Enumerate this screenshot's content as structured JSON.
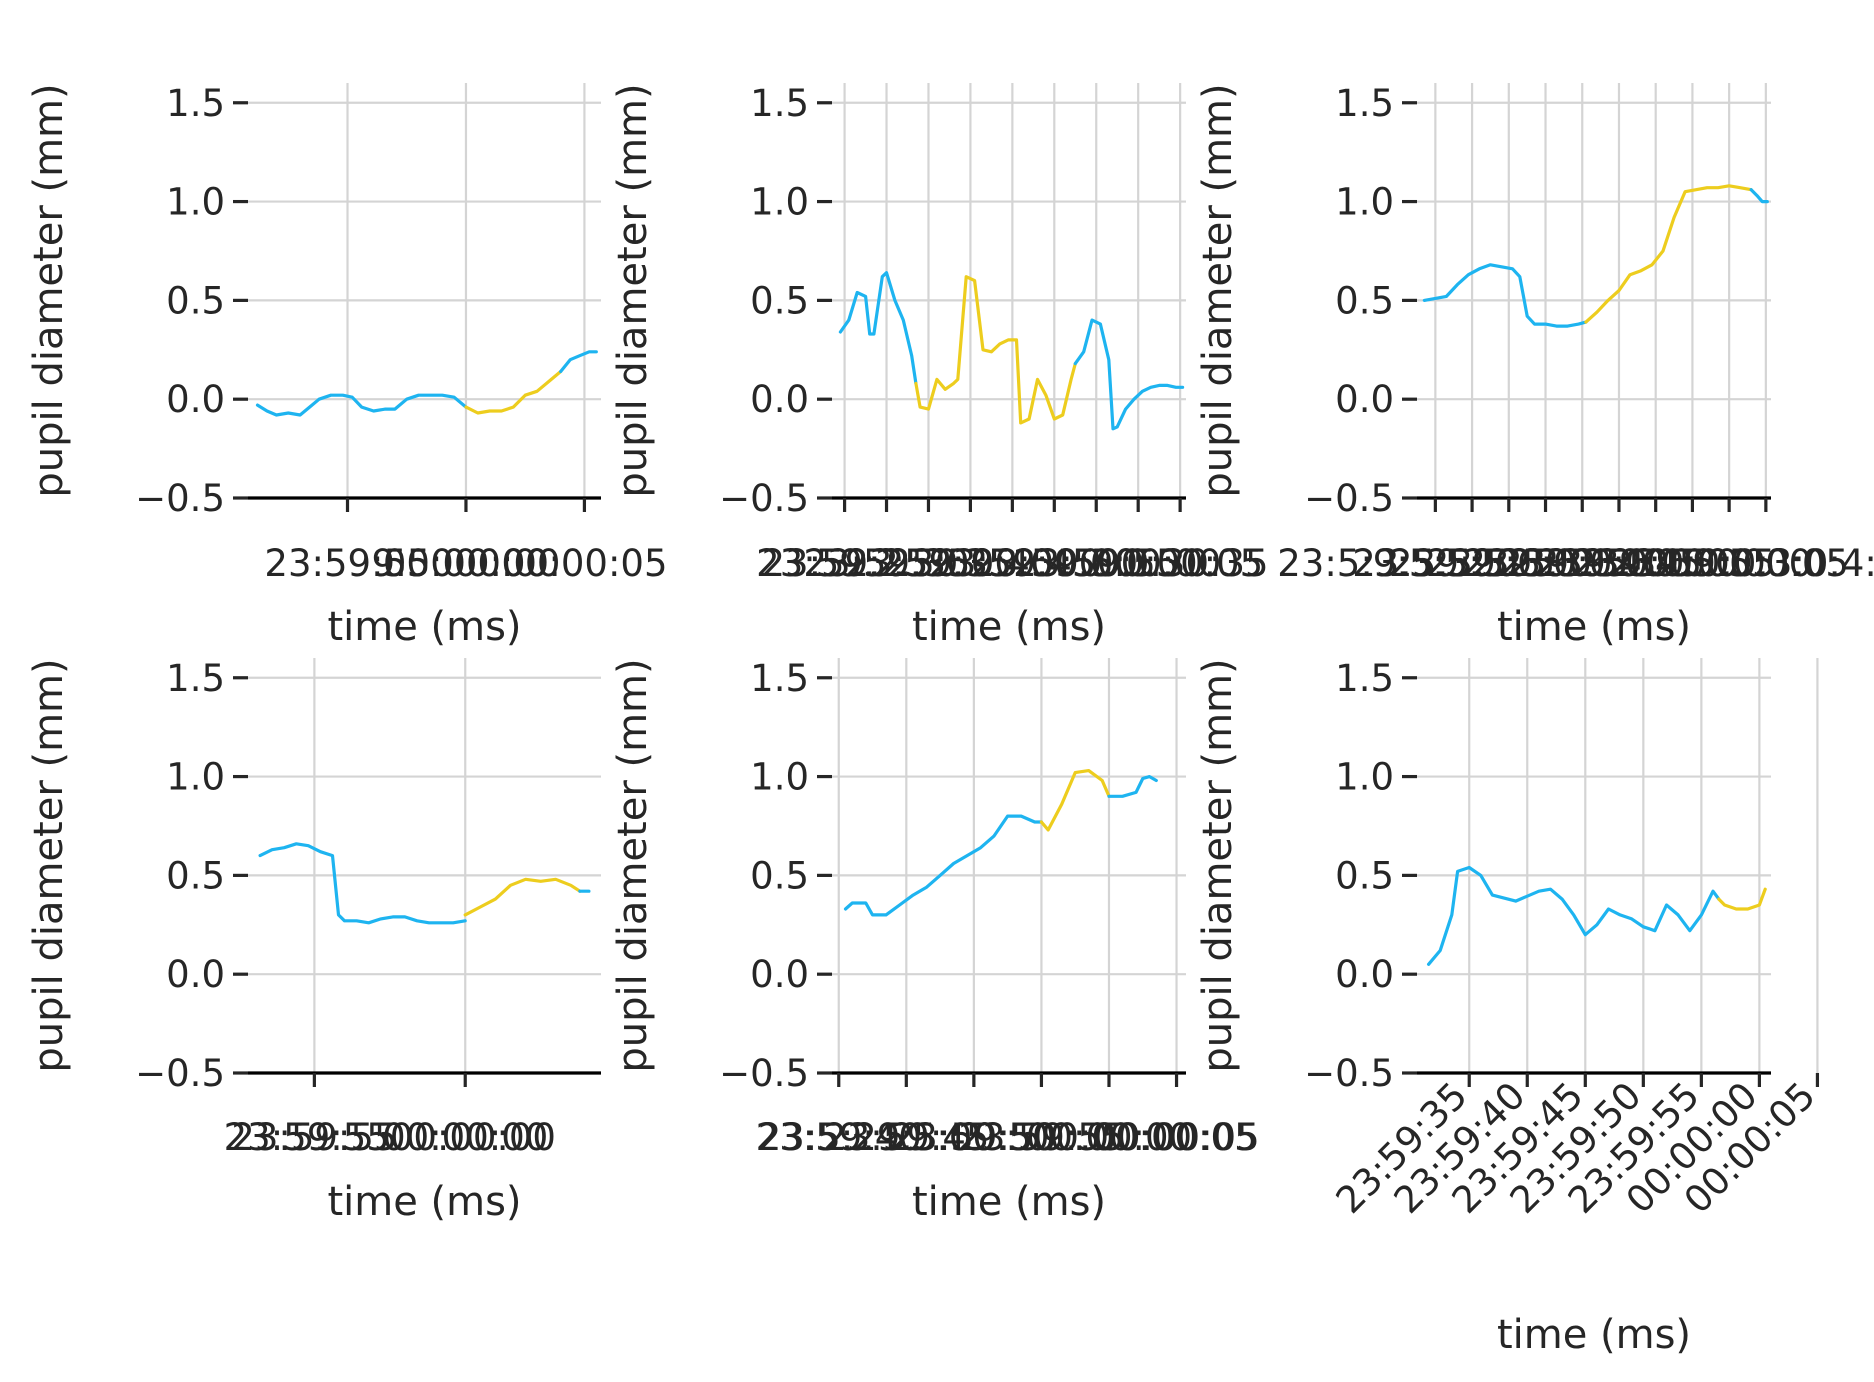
{
  "colors": {
    "series_a": "#1EB4F0",
    "series_b": "#EDCD1E",
    "grid": "#D4D4D4",
    "spine": "#000000",
    "text": "#262626"
  },
  "chart_data": [
    {
      "type": "line",
      "panel": 1,
      "xlabel": "time (ms)",
      "ylabel": "pupil diameter (mm)",
      "ylim": [
        -0.5,
        1.6
      ],
      "yticks": [
        -0.5,
        0.0,
        0.5,
        1.0,
        1.5
      ],
      "ytick_labels": [
        "−0.5",
        "0.0",
        "0.5",
        "1.0",
        "1.5"
      ],
      "xlim": [
        -9.2,
        5.7
      ],
      "xticks": [
        -5,
        0,
        5
      ],
      "xtick_labels": [
        "23:59:55",
        "00:00:00",
        "00:00:05"
      ],
      "xtick_overlay": "9.5000:00",
      "grid": true,
      "series": [
        {
          "color": "#1EB4F0",
          "x": [
            -8.8,
            -8.4,
            -8.0,
            -7.5,
            -7.0,
            -6.6,
            -6.2,
            -5.7,
            -5.2,
            -4.8,
            -4.4,
            -3.9,
            -3.4,
            -3.0,
            -2.5,
            -2.0,
            -1.5,
            -1.0,
            -0.5,
            0.0
          ],
          "y": [
            -0.03,
            -0.06,
            -0.08,
            -0.07,
            -0.08,
            -0.04,
            0.0,
            0.02,
            0.02,
            0.01,
            -0.04,
            -0.06,
            -0.05,
            -0.05,
            0.0,
            0.02,
            0.02,
            0.02,
            0.01,
            -0.04
          ]
        },
        {
          "color": "#EDCD1E",
          "x": [
            0.0,
            0.5,
            1.0,
            1.5,
            2.0,
            2.5,
            3.0,
            3.5,
            4.0
          ],
          "y": [
            -0.04,
            -0.07,
            -0.06,
            -0.06,
            -0.04,
            0.02,
            0.04,
            0.09,
            0.14
          ]
        },
        {
          "color": "#1EB4F0",
          "x": [
            4.0,
            4.4,
            4.8,
            5.2,
            5.5
          ],
          "y": [
            0.14,
            0.2,
            0.22,
            0.24,
            0.24
          ]
        }
      ]
    },
    {
      "type": "line",
      "panel": 2,
      "xlabel": "time (ms)",
      "ylabel": "pupil diameter (mm)",
      "ylim": [
        -0.5,
        1.6
      ],
      "yticks": [
        -0.5,
        0.0,
        0.5,
        1.0,
        1.5
      ],
      "ytick_labels": [
        "−0.5",
        "0.0",
        "0.5",
        "1.0",
        "1.5"
      ],
      "xlim": [
        -36.5,
        5.7
      ],
      "xticks": [
        -35,
        -30,
        -25,
        -20,
        -15,
        -10,
        -5,
        0,
        5
      ],
      "xtick_labels": [
        "23:59:25",
        "23:59:30",
        "23:59:35",
        "23:59:40",
        "23:59:45",
        "23:59:50",
        "23:59:55",
        "00:00:00",
        "00:00:05"
      ],
      "xtick_overlay": "23:59:2:50:00:00:0:0:30:35",
      "grid": true,
      "series": [
        {
          "color": "#1EB4F0",
          "x": [
            -35.5,
            -34.5,
            -33.5,
            -32.5,
            -32.0,
            -31.5,
            -30.5,
            -30.0,
            -29.0,
            -28.0,
            -27.0,
            -26.5
          ],
          "y": [
            0.34,
            0.4,
            0.54,
            0.52,
            0.33,
            0.33,
            0.62,
            0.64,
            0.5,
            0.4,
            0.22,
            0.08
          ]
        },
        {
          "color": "#EDCD1E",
          "x": [
            -26.5,
            -26.0,
            -25.0,
            -24.0,
            -23.0,
            -22.0,
            -21.5,
            -20.5,
            -19.5,
            -18.5,
            -17.5,
            -16.5,
            -15.5,
            -14.5,
            -14.0,
            -13.0,
            -12.0,
            -11.0,
            -10.0,
            -9.0,
            -8.0,
            -7.5
          ],
          "y": [
            0.08,
            -0.04,
            -0.05,
            0.1,
            0.05,
            0.08,
            0.1,
            0.62,
            0.6,
            0.25,
            0.24,
            0.28,
            0.3,
            0.3,
            -0.12,
            -0.1,
            0.1,
            0.02,
            -0.1,
            -0.08,
            0.1,
            0.18
          ]
        },
        {
          "color": "#1EB4F0",
          "x": [
            -7.5,
            -6.5,
            -5.5,
            -4.5,
            -3.5,
            -3.0,
            -2.5,
            -1.5,
            -0.5,
            0.5,
            1.5,
            2.5,
            3.5,
            4.5,
            5.3
          ],
          "y": [
            0.18,
            0.24,
            0.4,
            0.38,
            0.2,
            -0.15,
            -0.14,
            -0.05,
            0.0,
            0.04,
            0.06,
            0.07,
            0.07,
            0.06,
            0.06
          ]
        }
      ]
    },
    {
      "type": "line",
      "panel": 3,
      "xlabel": "time (ms)",
      "ylabel": "pupil diameter (mm)",
      "ylim": [
        -0.5,
        1.6
      ],
      "yticks": [
        -0.5,
        0.0,
        0.5,
        1.0,
        1.5
      ],
      "ytick_labels": [
        "−0.5",
        "0.0",
        "0.5",
        "1.0",
        "1.5"
      ],
      "xlim": [
        -42.5,
        5.7
      ],
      "xticks": [
        -40,
        -35,
        -30,
        -25,
        -20,
        -15,
        -10,
        -5,
        0,
        5
      ],
      "xtick_labels": [
        "23:59:20",
        "23:59:25",
        "23:59:30",
        "23:59:35",
        "23:59:40",
        "23:59:45",
        "23:59:50",
        "23:59:55",
        "00:00:00",
        "00:00:05"
      ],
      "xtick_overlay": "23:5:9:5:5:5:6:0:0:0:0:0:0:3:0:4:05",
      "grid": true,
      "series": [
        {
          "color": "#1EB4F0",
          "x": [
            -41.5,
            -40.0,
            -38.5,
            -37.0,
            -35.5,
            -34.0,
            -32.5,
            -31.0,
            -29.5,
            -28.5,
            -27.5,
            -26.5,
            -25.0,
            -23.5,
            -22.0,
            -20.5,
            -19.5
          ],
          "y": [
            0.5,
            0.51,
            0.52,
            0.58,
            0.63,
            0.66,
            0.68,
            0.67,
            0.66,
            0.62,
            0.42,
            0.38,
            0.38,
            0.37,
            0.37,
            0.38,
            0.39
          ]
        },
        {
          "color": "#EDCD1E",
          "x": [
            -19.5,
            -18.0,
            -16.5,
            -15.0,
            -13.5,
            -12.0,
            -10.5,
            -9.0,
            -7.5,
            -6.0,
            -4.5,
            -3.0,
            -1.5,
            0.0,
            1.5,
            3.0
          ],
          "y": [
            0.39,
            0.44,
            0.5,
            0.55,
            0.63,
            0.65,
            0.68,
            0.75,
            0.92,
            1.05,
            1.06,
            1.07,
            1.07,
            1.08,
            1.07,
            1.06
          ]
        },
        {
          "color": "#1EB4F0",
          "x": [
            3.0,
            3.8,
            4.5,
            5.2
          ],
          "y": [
            1.06,
            1.03,
            1.0,
            1.0
          ]
        }
      ]
    },
    {
      "type": "line",
      "panel": 4,
      "xlabel": "time (ms)",
      "ylabel": "pupil diameter (mm)",
      "ylim": [
        -0.5,
        1.6
      ],
      "yticks": [
        -0.5,
        0.0,
        0.5,
        1.0,
        1.5
      ],
      "ytick_labels": [
        "−0.5",
        "0.0",
        "0.5",
        "1.0",
        "1.5"
      ],
      "xlim": [
        -7.2,
        4.5
      ],
      "xticks": [
        -5,
        0
      ],
      "xtick_labels": [
        "23:59:55",
        "00:00:00"
      ],
      "xtick_overlay": "23:59:5500:00:00",
      "grid": true,
      "series": [
        {
          "color": "#1EB4F0",
          "x": [
            -6.8,
            -6.4,
            -6.0,
            -5.6,
            -5.2,
            -4.8,
            -4.4,
            -4.2,
            -4.0,
            -3.6,
            -3.2,
            -2.8,
            -2.4,
            -2.0,
            -1.6,
            -1.2,
            -0.8,
            -0.4,
            0.0
          ],
          "y": [
            0.6,
            0.63,
            0.64,
            0.66,
            0.65,
            0.62,
            0.6,
            0.3,
            0.27,
            0.27,
            0.26,
            0.28,
            0.29,
            0.29,
            0.27,
            0.26,
            0.26,
            0.26,
            0.27
          ]
        },
        {
          "color": "#EDCD1E",
          "x": [
            0.0,
            0.5,
            1.0,
            1.5,
            2.0,
            2.5,
            3.0,
            3.5,
            3.8
          ],
          "y": [
            0.3,
            0.34,
            0.38,
            0.45,
            0.48,
            0.47,
            0.48,
            0.45,
            0.42
          ]
        },
        {
          "color": "#1EB4F0",
          "x": [
            3.8,
            4.1
          ],
          "y": [
            0.42,
            0.42
          ]
        }
      ]
    },
    {
      "type": "line",
      "panel": 5,
      "xlabel": "time (ms)",
      "ylabel": "pupil diameter (mm)",
      "ylim": [
        -0.5,
        1.6
      ],
      "yticks": [
        -0.5,
        0.0,
        0.5,
        1.0,
        1.5
      ],
      "ytick_labels": [
        "−0.5",
        "0.0",
        "0.5",
        "1.0",
        "1.5"
      ],
      "xlim": [
        -20.5,
        5.7
      ],
      "xticks": [
        -20,
        -15,
        -10,
        -5,
        0,
        5
      ],
      "xtick_labels": [
        "23:59:40",
        "23:59:45",
        "23:59:50",
        "23:59:55",
        "00:00:00",
        "00:00:05"
      ],
      "xtick_overlay": "23:5:29:5:00:500:00:00:05",
      "grid": true,
      "series": [
        {
          "color": "#1EB4F0",
          "x": [
            -19.5,
            -19.0,
            -18.0,
            -17.5,
            -16.5,
            -15.5,
            -14.5,
            -13.5,
            -12.5,
            -11.5,
            -10.5,
            -9.5,
            -8.5,
            -7.5,
            -6.5,
            -5.5,
            -5.0
          ],
          "y": [
            0.33,
            0.36,
            0.36,
            0.3,
            0.3,
            0.35,
            0.4,
            0.44,
            0.5,
            0.56,
            0.6,
            0.64,
            0.7,
            0.8,
            0.8,
            0.77,
            0.77
          ]
        },
        {
          "color": "#EDCD1E",
          "x": [
            -5.0,
            -4.5,
            -3.5,
            -2.5,
            -1.5,
            -0.5,
            0.0
          ],
          "y": [
            0.77,
            0.73,
            0.86,
            1.02,
            1.03,
            0.98,
            0.9
          ]
        },
        {
          "color": "#1EB4F0",
          "x": [
            0.0,
            1.0,
            2.0,
            2.5,
            3.0,
            3.5
          ],
          "y": [
            0.9,
            0.9,
            0.92,
            0.99,
            1.0,
            0.98
          ]
        }
      ]
    },
    {
      "type": "line",
      "panel": 6,
      "xlabel": "time (ms)",
      "ylabel": "pupil diameter (mm)",
      "ylim": [
        -0.5,
        1.6
      ],
      "yticks": [
        -0.5,
        0.0,
        0.5,
        1.0,
        1.5
      ],
      "ytick_labels": [
        "−0.5",
        "0.0",
        "0.5",
        "1.0",
        "1.5"
      ],
      "xlim": [
        -29.5,
        1.0
      ],
      "xticks": [
        -25,
        -20,
        -15,
        -10,
        -5,
        0,
        5
      ],
      "xtick_labels": [
        "23:59:35",
        "23:59:40",
        "23:59:45",
        "23:59:50",
        "23:59:55",
        "00:00:00",
        "00:00:05"
      ],
      "xtick_rotation": -45,
      "grid": true,
      "series": [
        {
          "color": "#1EB4F0",
          "x": [
            -28.5,
            -27.5,
            -26.5,
            -26.0,
            -25.0,
            -24.0,
            -23.0,
            -21.0,
            -19.0,
            -18.0,
            -17.0,
            -16.0,
            -15.0,
            -14.0,
            -13.0,
            -12.0,
            -11.0,
            -10.0,
            -9.0,
            -8.0,
            -7.0,
            -6.0,
            -5.0,
            -4.0,
            -3.5
          ],
          "y": [
            0.05,
            0.12,
            0.3,
            0.52,
            0.54,
            0.5,
            0.4,
            0.37,
            0.42,
            0.43,
            0.38,
            0.3,
            0.2,
            0.25,
            0.33,
            0.3,
            0.28,
            0.24,
            0.22,
            0.35,
            0.3,
            0.22,
            0.3,
            0.42,
            0.38
          ]
        },
        {
          "color": "#EDCD1E",
          "x": [
            -3.5,
            -3.0,
            -2.0,
            -1.0,
            0.0,
            0.5
          ],
          "y": [
            0.38,
            0.35,
            0.33,
            0.33,
            0.35,
            0.43
          ]
        }
      ]
    }
  ]
}
